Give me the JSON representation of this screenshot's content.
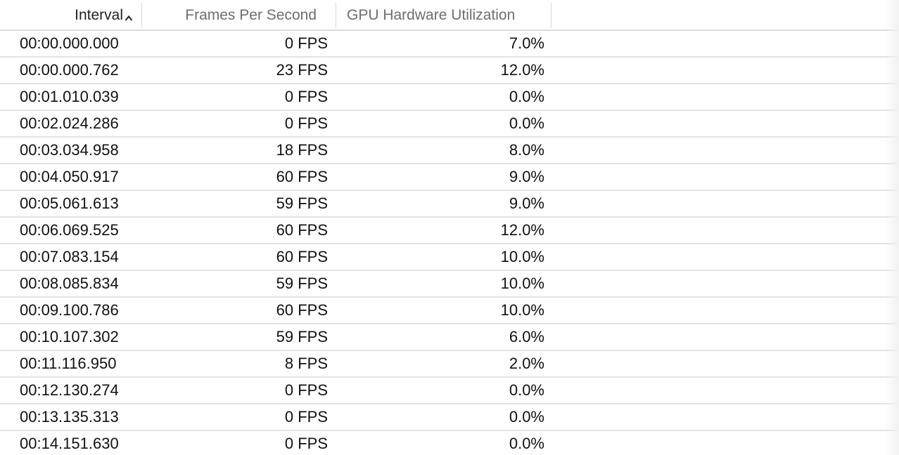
{
  "columns": {
    "interval": "Interval",
    "fps": "Frames Per Second",
    "gpu": "GPU Hardware Utilization"
  },
  "sort": {
    "column": "interval",
    "direction": "ascending",
    "icon": "chevron-up-icon"
  },
  "rows": [
    {
      "interval": "00:00.000.000",
      "fps": "0 FPS",
      "gpu": "7.0%"
    },
    {
      "interval": "00:00.000.762",
      "fps": "23 FPS",
      "gpu": "12.0%"
    },
    {
      "interval": "00:01.010.039",
      "fps": "0 FPS",
      "gpu": "0.0%"
    },
    {
      "interval": "00:02.024.286",
      "fps": "0 FPS",
      "gpu": "0.0%"
    },
    {
      "interval": "00:03.034.958",
      "fps": "18 FPS",
      "gpu": "8.0%"
    },
    {
      "interval": "00:04.050.917",
      "fps": "60 FPS",
      "gpu": "9.0%"
    },
    {
      "interval": "00:05.061.613",
      "fps": "59 FPS",
      "gpu": "9.0%"
    },
    {
      "interval": "00:06.069.525",
      "fps": "60 FPS",
      "gpu": "12.0%"
    },
    {
      "interval": "00:07.083.154",
      "fps": "60 FPS",
      "gpu": "10.0%"
    },
    {
      "interval": "00:08.085.834",
      "fps": "59 FPS",
      "gpu": "10.0%"
    },
    {
      "interval": "00:09.100.786",
      "fps": "60 FPS",
      "gpu": "10.0%"
    },
    {
      "interval": "00:10.107.302",
      "fps": "59 FPS",
      "gpu": "6.0%"
    },
    {
      "interval": "00:11.116.950",
      "fps": "8 FPS",
      "gpu": "2.0%"
    },
    {
      "interval": "00:12.130.274",
      "fps": "0 FPS",
      "gpu": "0.0%"
    },
    {
      "interval": "00:13.135.313",
      "fps": "0 FPS",
      "gpu": "0.0%"
    },
    {
      "interval": "00:14.151.630",
      "fps": "0 FPS",
      "gpu": "0.0%"
    }
  ]
}
